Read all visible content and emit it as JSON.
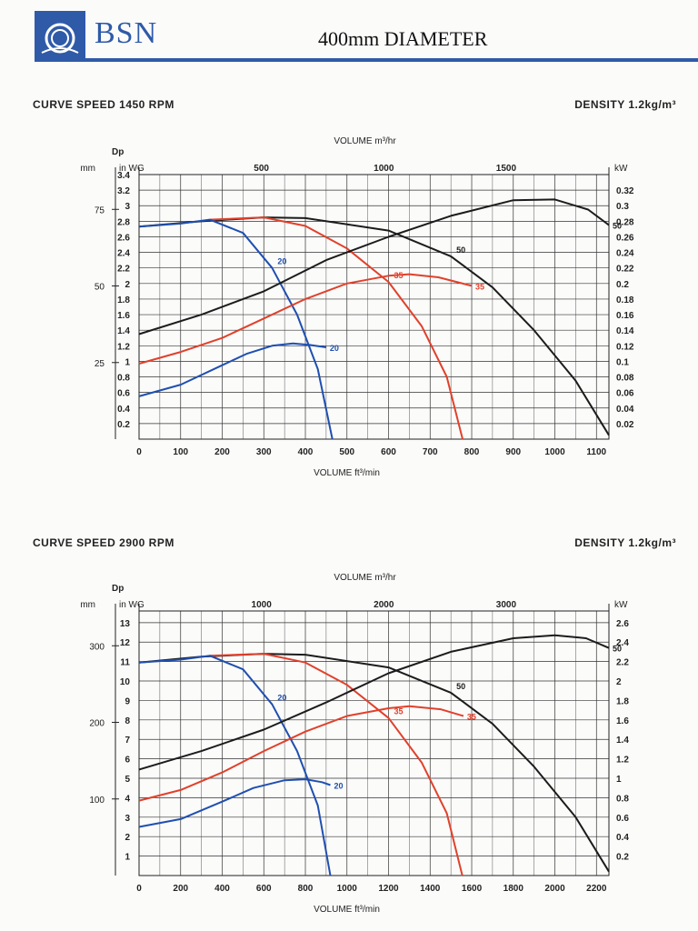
{
  "header": {
    "brand": "BSN",
    "title": "400mm DIAMETER",
    "colors": {
      "brand_blue": "#2f5aa8"
    }
  },
  "chart_data": [
    {
      "type": "line",
      "speed_caption": "CURVE SPEED 1450 RPM",
      "density_caption": "DENSITY 1.2kg/m³",
      "top_axis": {
        "label": "VOLUME m³/hr",
        "ticks": [
          "500",
          "1000",
          "1500"
        ]
      },
      "xlabel": "VOLUME ft³/min",
      "x_ticks": [
        "0",
        "100",
        "200",
        "300",
        "400",
        "500",
        "600",
        "700",
        "800",
        "900",
        "1000",
        "1100"
      ],
      "xlim": [
        0,
        1130
      ],
      "left_outer_axis": {
        "label": "mm",
        "ticks": [
          "25",
          "50",
          "75"
        ]
      },
      "ylabel": "Dp",
      "ylabel_units": "in WG",
      "ylim": [
        0,
        3.4
      ],
      "y_ticks": [
        "0.2",
        "0.4",
        "0.6",
        "0.8",
        "1",
        "1.2",
        "1.4",
        "1.6",
        "1.8",
        "2",
        "2.2",
        "2.4",
        "2.6",
        "2.8",
        "3",
        "3.2",
        "3.4"
      ],
      "right_axis": {
        "label": "kW",
        "ticks": [
          "0.02",
          "0.04",
          "0.06",
          "0.08",
          "0.1",
          "0.12",
          "0.14",
          "0.16",
          "0.18",
          "0.2",
          "0.22",
          "0.24",
          "0.26",
          "0.28",
          "0.3",
          "0.32"
        ]
      },
      "grid": true,
      "series": [
        {
          "name": "50",
          "kind": "pressure",
          "color": "#1c1c1c",
          "points": [
            [
              0,
              2.73
            ],
            [
              150,
              2.8
            ],
            [
              300,
              2.85
            ],
            [
              400,
              2.84
            ],
            [
              600,
              2.68
            ],
            [
              750,
              2.35
            ],
            [
              850,
              1.95
            ],
            [
              950,
              1.4
            ],
            [
              1050,
              0.75
            ],
            [
              1130,
              0.05
            ]
          ]
        },
        {
          "name": "35",
          "kind": "pressure",
          "color": "#e0412b",
          "points": [
            [
              170,
              2.82
            ],
            [
              300,
              2.85
            ],
            [
              400,
              2.74
            ],
            [
              500,
              2.45
            ],
            [
              600,
              2.02
            ],
            [
              680,
              1.45
            ],
            [
              740,
              0.8
            ],
            [
              778,
              0
            ]
          ]
        },
        {
          "name": "20",
          "kind": "pressure",
          "color": "#1f4fb0",
          "points": [
            [
              0,
              2.73
            ],
            [
              100,
              2.77
            ],
            [
              170,
              2.82
            ],
            [
              250,
              2.65
            ],
            [
              320,
              2.2
            ],
            [
              380,
              1.6
            ],
            [
              430,
              0.9
            ],
            [
              465,
              0
            ]
          ]
        },
        {
          "name": "50",
          "kind": "power",
          "color": "#1c1c1c",
          "points": [
            [
              0,
              1.35
            ],
            [
              150,
              1.6
            ],
            [
              300,
              1.9
            ],
            [
              450,
              2.3
            ],
            [
              600,
              2.6
            ],
            [
              750,
              2.87
            ],
            [
              900,
              3.07
            ],
            [
              1000,
              3.08
            ],
            [
              1080,
              2.95
            ],
            [
              1130,
              2.75
            ]
          ]
        },
        {
          "name": "35",
          "kind": "power",
          "color": "#e0412b",
          "points": [
            [
              0,
              0.97
            ],
            [
              100,
              1.12
            ],
            [
              200,
              1.3
            ],
            [
              300,
              1.55
            ],
            [
              400,
              1.8
            ],
            [
              500,
              2.0
            ],
            [
              600,
              2.1
            ],
            [
              650,
              2.12
            ],
            [
              720,
              2.08
            ],
            [
              800,
              1.97
            ]
          ]
        },
        {
          "name": "20",
          "kind": "power",
          "color": "#1f4fb0",
          "points": [
            [
              0,
              0.55
            ],
            [
              100,
              0.7
            ],
            [
              200,
              0.95
            ],
            [
              260,
              1.1
            ],
            [
              320,
              1.2
            ],
            [
              370,
              1.23
            ],
            [
              410,
              1.21
            ],
            [
              450,
              1.18
            ]
          ]
        }
      ]
    },
    {
      "type": "line",
      "speed_caption": "CURVE SPEED 2900 RPM",
      "density_caption": "DENSITY 1.2kg/m³",
      "top_axis": {
        "label": "VOLUME m³/hr",
        "ticks": [
          "1000",
          "2000",
          "3000"
        ]
      },
      "xlabel": "VOLUME ft³/min",
      "x_ticks": [
        "0",
        "200",
        "400",
        "600",
        "800",
        "1000",
        "1200",
        "1400",
        "1600",
        "1800",
        "2000",
        "2200"
      ],
      "xlim": [
        0,
        2260
      ],
      "left_outer_axis": {
        "label": "mm",
        "ticks": [
          "100",
          "200",
          "300"
        ]
      },
      "ylabel": "Dp",
      "ylabel_units": "in WG",
      "ylim": [
        0,
        13.6
      ],
      "y_ticks": [
        "1",
        "2",
        "3",
        "4",
        "5",
        "6",
        "7",
        "8",
        "9",
        "10",
        "11",
        "12",
        "13"
      ],
      "right_axis": {
        "label": "kW",
        "ticks": [
          "0.2",
          "0.4",
          "0.6",
          "0.8",
          "1",
          "1.2",
          "1.4",
          "1.6",
          "1.8",
          "2",
          "2.2",
          "2.4",
          "2.6"
        ]
      },
      "grid": true,
      "series": [
        {
          "name": "50",
          "kind": "pressure",
          "color": "#1c1c1c",
          "points": [
            [
              0,
              10.95
            ],
            [
              300,
              11.25
            ],
            [
              600,
              11.4
            ],
            [
              800,
              11.35
            ],
            [
              1200,
              10.7
            ],
            [
              1500,
              9.4
            ],
            [
              1700,
              7.8
            ],
            [
              1900,
              5.6
            ],
            [
              2100,
              3.0
            ],
            [
              2260,
              0.2
            ]
          ]
        },
        {
          "name": "35",
          "kind": "pressure",
          "color": "#e0412b",
          "points": [
            [
              340,
              11.3
            ],
            [
              600,
              11.4
            ],
            [
              800,
              10.95
            ],
            [
              1000,
              9.8
            ],
            [
              1200,
              8.1
            ],
            [
              1360,
              5.8
            ],
            [
              1480,
              3.2
            ],
            [
              1555,
              0
            ]
          ]
        },
        {
          "name": "20",
          "kind": "pressure",
          "color": "#1f4fb0",
          "points": [
            [
              0,
              10.95
            ],
            [
              200,
              11.1
            ],
            [
              340,
              11.3
            ],
            [
              500,
              10.6
            ],
            [
              640,
              8.8
            ],
            [
              760,
              6.4
            ],
            [
              860,
              3.6
            ],
            [
              920,
              0
            ]
          ]
        },
        {
          "name": "50",
          "kind": "power",
          "color": "#1c1c1c",
          "points": [
            [
              0,
              5.45
            ],
            [
              300,
              6.4
            ],
            [
              600,
              7.5
            ],
            [
              900,
              8.9
            ],
            [
              1200,
              10.4
            ],
            [
              1500,
              11.5
            ],
            [
              1800,
              12.2
            ],
            [
              2000,
              12.35
            ],
            [
              2150,
              12.2
            ],
            [
              2260,
              11.7
            ]
          ]
        },
        {
          "name": "35",
          "kind": "power",
          "color": "#e0412b",
          "points": [
            [
              0,
              3.85
            ],
            [
              200,
              4.4
            ],
            [
              400,
              5.3
            ],
            [
              600,
              6.4
            ],
            [
              800,
              7.4
            ],
            [
              1000,
              8.2
            ],
            [
              1200,
              8.6
            ],
            [
              1300,
              8.7
            ],
            [
              1450,
              8.55
            ],
            [
              1560,
              8.2
            ]
          ]
        },
        {
          "name": "20",
          "kind": "power",
          "color": "#1f4fb0",
          "points": [
            [
              0,
              2.5
            ],
            [
              200,
              2.9
            ],
            [
              400,
              3.8
            ],
            [
              550,
              4.5
            ],
            [
              700,
              4.9
            ],
            [
              800,
              4.95
            ],
            [
              880,
              4.8
            ],
            [
              920,
              4.65
            ]
          ]
        }
      ]
    }
  ]
}
